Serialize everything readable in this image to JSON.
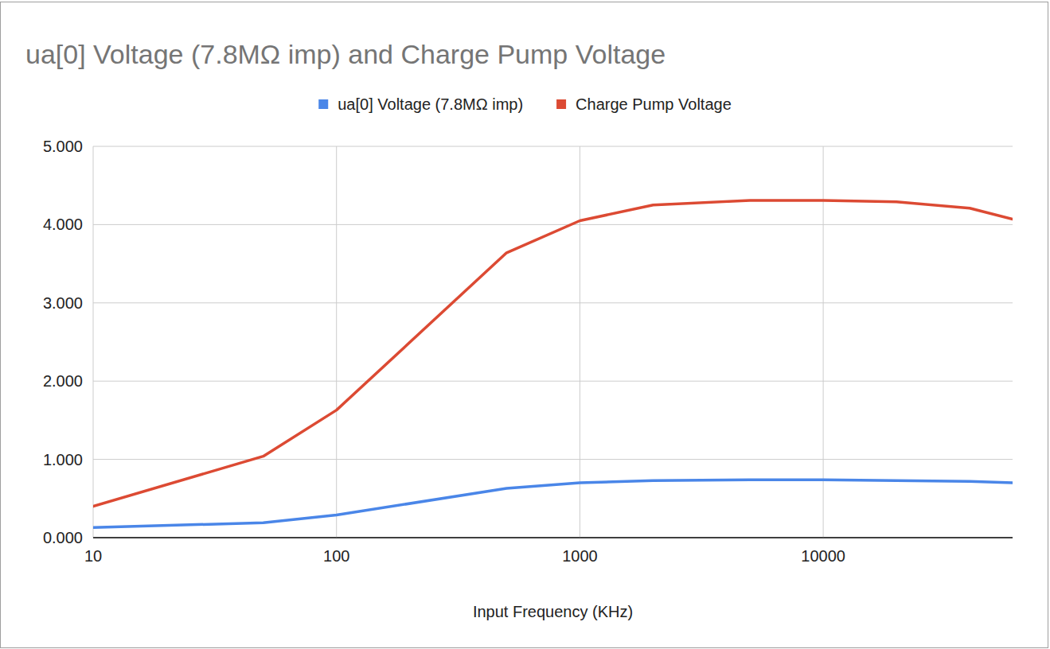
{
  "chart_data": {
    "type": "line",
    "title": "ua[0] Voltage (7.8MΩ imp) and Charge Pump Voltage",
    "x_label": "Input Frequency (KHz)",
    "x": [
      10,
      50,
      100,
      500,
      1000,
      2000,
      5000,
      10000,
      20000,
      40000,
      60000
    ],
    "series": [
      {
        "name": "ua[0] Voltage (7.8MΩ imp)",
        "color": "#4a86e8",
        "values": [
          0.13,
          0.19,
          0.29,
          0.63,
          0.7,
          0.73,
          0.74,
          0.74,
          0.73,
          0.72,
          0.7
        ]
      },
      {
        "name": "Charge Pump Voltage",
        "color": "#dc4a33",
        "values": [
          0.4,
          1.04,
          1.63,
          3.64,
          4.05,
          4.25,
          4.31,
          4.31,
          4.29,
          4.21,
          4.07
        ]
      }
    ],
    "log": "x",
    "xlim": [
      10,
      60000
    ],
    "xticks": [
      10,
      100,
      1000,
      10000
    ],
    "ylim": [
      0,
      5
    ],
    "yticks": [
      {
        "value": 0,
        "label": "0.000"
      },
      {
        "value": 1,
        "label": "1.000"
      },
      {
        "value": 2,
        "label": "2.000"
      },
      {
        "value": 3,
        "label": "3.000"
      },
      {
        "value": 4,
        "label": "4.000"
      },
      {
        "value": 5,
        "label": "5.000"
      }
    ],
    "grid": true,
    "legend": "top"
  }
}
